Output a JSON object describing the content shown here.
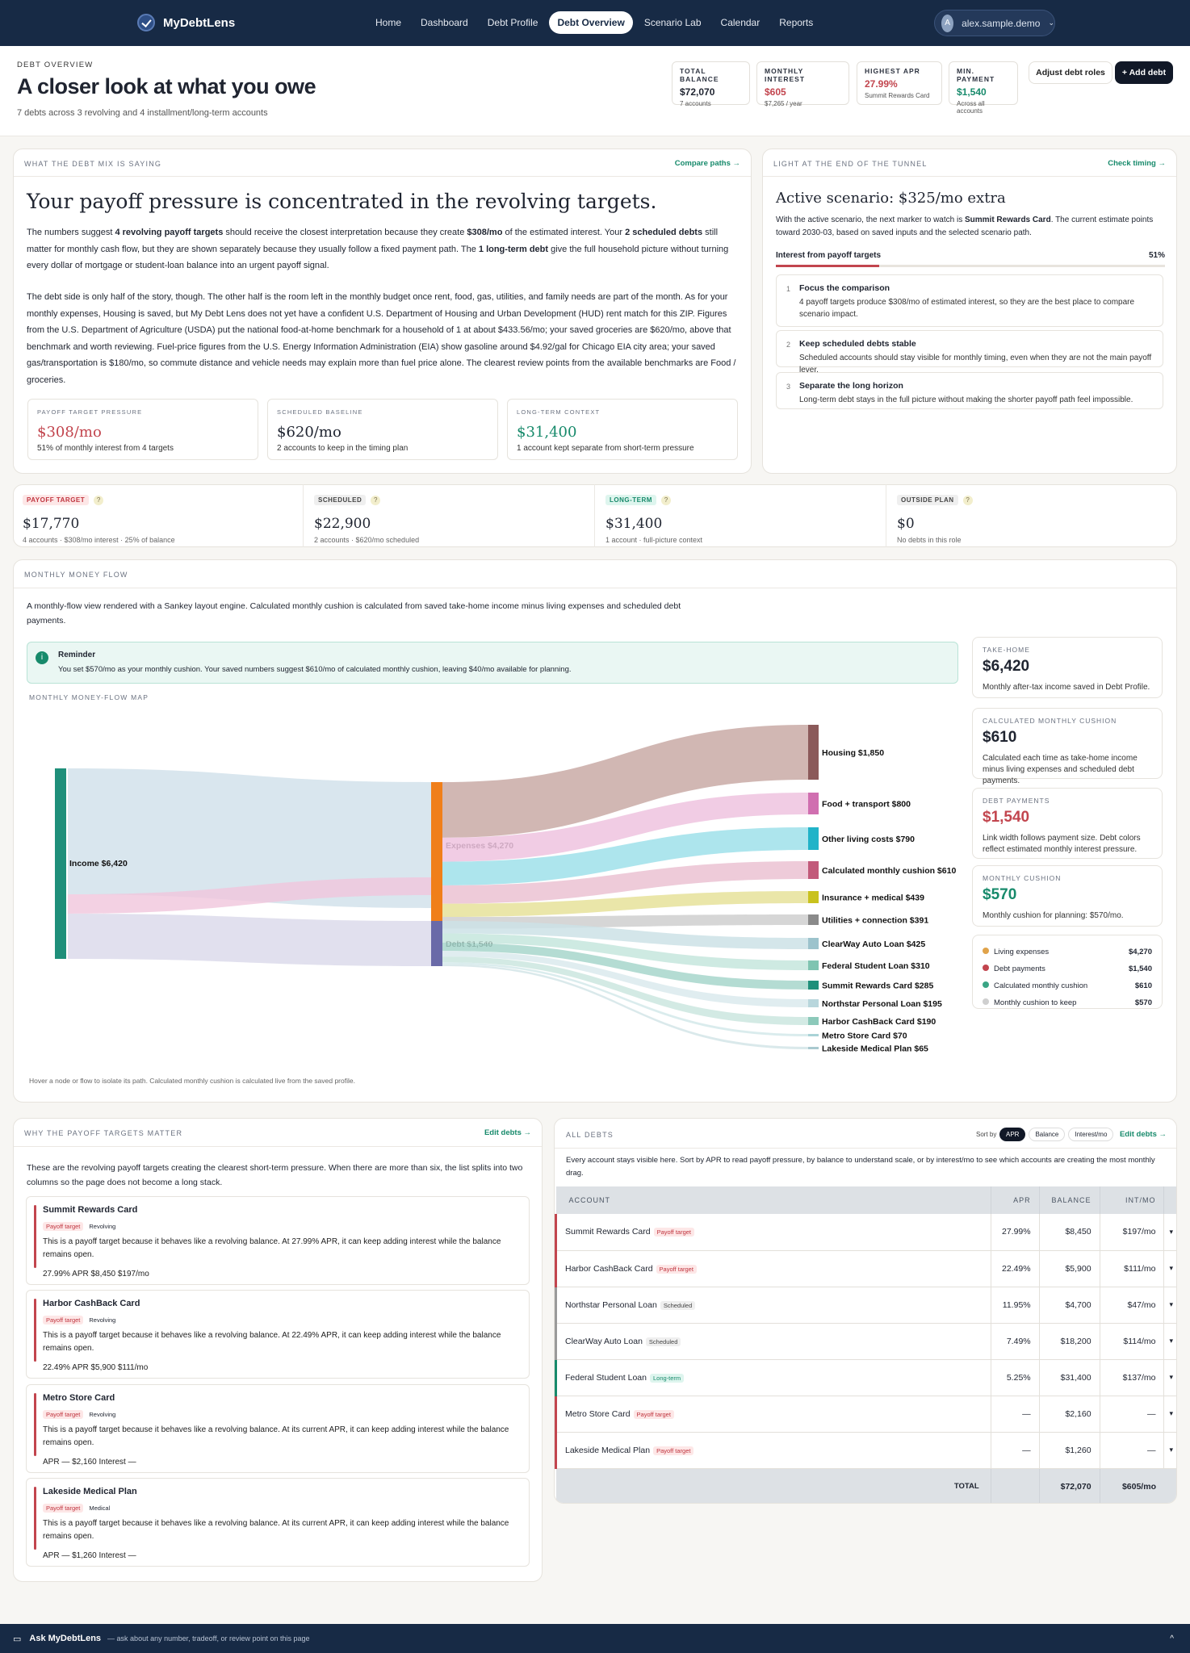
{
  "nav": {
    "brand": "MyDebtLens",
    "links": [
      "Home",
      "Dashboard",
      "Debt Profile",
      "Debt Overview",
      "Scenario Lab",
      "Calendar",
      "Reports"
    ],
    "user": "alex.sample.demo",
    "avatar": "A"
  },
  "header": {
    "eyebrow": "DEBT OVERVIEW",
    "title": "A closer look at what you owe",
    "subtitle": "7 debts across 3 revolving and 4 installment/long-term accounts",
    "stats": [
      {
        "label": "TOTAL BALANCE",
        "value": "$72,070",
        "sub": "7 accounts",
        "color": "#1f2430"
      },
      {
        "label": "MONTHLY INTEREST",
        "value": "$605",
        "sub": "$7,265 / year",
        "color": "#c2454e"
      },
      {
        "label": "HIGHEST APR",
        "value": "27.99%",
        "sub": "Summit Rewards Card",
        "color": "#c2454e"
      },
      {
        "label": "MIN. PAYMENT",
        "value": "$1,540",
        "sub": "Across all accounts",
        "color": "#178a6b"
      }
    ],
    "adjust": "Adjust debt roles",
    "add": "+ Add debt"
  },
  "mix": {
    "label": "WHAT THE DEBT MIX IS SAYING",
    "link": "Compare paths →",
    "headline": "Your payoff pressure is concentrated in the revolving targets.",
    "p1a": "The numbers suggest ",
    "p1b": "4 revolving payoff targets",
    "p1c": " should receive the closest interpretation because they create ",
    "p1d": "$308/mo",
    "p1e": " of the estimated interest. Your ",
    "p1f": "2 scheduled debts",
    "p1g": " still matter for monthly cash flow, but they are shown separately because they usually follow a fixed payment path. The ",
    "p1h": "1 long-term debt",
    "p1i": " give the full household picture without turning every dollar of mortgage or student-loan balance into an urgent payoff signal.",
    "p2": "The debt side is only half of the story, though. The other half is the room left in the monthly budget once rent, food, gas, utilities, and family needs are part of the month. As for your monthly expenses, Housing is saved, but My Debt Lens does not yet have a confident U.S. Department of Housing and Urban Development (HUD) rent match for this ZIP. Figures from the U.S. Department of Agriculture (USDA) put the national food-at-home benchmark for a household of 1 at about $433.56/mo; your saved groceries are $620/mo, above that benchmark and worth reviewing. Fuel-price figures from the U.S. Energy Information Administration (EIA) show gasoline around $4.92/gal for Chicago EIA city area; your saved gas/transportation is $180/mo, so commute distance and vehicle needs may explain more than fuel price alone. The clearest review points from the available benchmarks are Food / groceries.",
    "minis": [
      {
        "label": "PAYOFF TARGET PRESSURE",
        "value": "$308/mo",
        "sub": "51% of monthly interest from 4 targets",
        "color": "#c2454e"
      },
      {
        "label": "SCHEDULED BASELINE",
        "value": "$620/mo",
        "sub": "2 accounts to keep in the timing plan",
        "color": "#1f2430"
      },
      {
        "label": "LONG-TERM CONTEXT",
        "value": "$31,400",
        "sub": "1 account kept separate from short-term pressure",
        "color": "#178a6b"
      }
    ]
  },
  "tunnel": {
    "label": "LIGHT AT THE END OF THE TUNNEL",
    "link": "Check timing →",
    "title": "Active scenario: $325/mo extra",
    "desc_a": "With the active scenario, the next marker to watch is ",
    "desc_b": "Summit Rewards Card",
    "desc_c": ". The current estimate points toward 2030-03, based on saved inputs and the selected scenario path.",
    "bar_label": "Interest from payoff targets",
    "bar_value": "51%",
    "bar_fraction": 0.51,
    "steps": [
      {
        "n": "1",
        "t": "Focus the comparison",
        "d": "4 payoff targets produce $308/mo of estimated interest, so they are the best place to compare scenario impact."
      },
      {
        "n": "2",
        "t": "Keep scheduled debts stable",
        "d": "Scheduled accounts should stay visible for monthly timing, even when they are not the main payoff lever."
      },
      {
        "n": "3",
        "t": "Separate the long horizon",
        "d": "Long-term debt stays in the full picture without making the shorter payoff path feel impossible."
      }
    ]
  },
  "roles": [
    {
      "tag": "PAYOFF TARGET",
      "value": "$17,770",
      "sub": "4 accounts · $308/mo interest · 25% of balance",
      "tagbg": "#fde7e7",
      "tagc": "#c0353f"
    },
    {
      "tag": "SCHEDULED",
      "value": "$22,900",
      "sub": "2 accounts · $620/mo scheduled",
      "tagbg": "#efefef",
      "tagc": "#444"
    },
    {
      "tag": "LONG-TERM",
      "value": "$31,400",
      "sub": "1 account · full-picture context",
      "tagbg": "#def5ee",
      "tagc": "#178a6b"
    },
    {
      "tag": "OUTSIDE PLAN",
      "value": "$0",
      "sub": "No debts in this role",
      "tagbg": "#efefef",
      "tagc": "#444"
    }
  ],
  "flow": {
    "label": "MONTHLY MONEY FLOW",
    "intro": "A monthly-flow view rendered with a Sankey layout engine. Calculated monthly cushion is calculated from saved take-home income minus living expenses and scheduled debt payments.",
    "reminder_title": "Reminder",
    "reminder": "You set $570/mo as your monthly cushion. Your saved numbers suggest $610/mo of calculated monthly cushion, leaving $40/mo available for planning.",
    "map_label": "MONTHLY MONEY-FLOW MAP",
    "hint": "Hover a node or flow to isolate its path. Calculated monthly cushion is calculated live from the saved profile.",
    "income": "Income  $6,420",
    "expenses": "Expenses  $4,270",
    "debt": "Debt  $1,540",
    "targets": [
      {
        "label": "Housing  $1,850",
        "value": 1850,
        "color": "#8b5a5a",
        "flow": "#c9aaa6"
      },
      {
        "label": "Food + transport  $800",
        "value": 800,
        "color": "#d06fb0",
        "flow": "#eec3df"
      },
      {
        "label": "Other living costs  $790",
        "value": 790,
        "color": "#21b3c8",
        "flow": "#9fe0ea"
      },
      {
        "label": "Calculated monthly cushion  $610",
        "value": 610,
        "color": "#c25a7a",
        "flow": "#ebc2d2"
      },
      {
        "label": "Insurance + medical  $439",
        "value": 439,
        "color": "#c9c21e",
        "flow": "#e6e29a"
      },
      {
        "label": "Utilities + connection  $391",
        "value": 391,
        "color": "#8a8a8a",
        "flow": "#cfcfcf"
      },
      {
        "label": "ClearWay Auto Loan  $425",
        "value": 425,
        "color": "#9cc3cc",
        "flow": "#cde2e6"
      },
      {
        "label": "Federal Student Loan  $310",
        "value": 310,
        "color": "#7fc4b1",
        "flow": "#c6e6dd"
      },
      {
        "label": "Summit Rewards Card  $285",
        "value": 285,
        "color": "#1f8f7a",
        "flow": "#a7d6cb"
      },
      {
        "label": "Northstar Personal Loan  $195",
        "value": 195,
        "color": "#b8d6dc",
        "flow": "#dbeaed"
      },
      {
        "label": "Harbor CashBack Card  $190",
        "value": 190,
        "color": "#8cc9ba",
        "flow": "#cbe6df"
      },
      {
        "label": "Metro Store Card  $70",
        "value": 70,
        "color": "#a9d3d6",
        "flow": "#d4e9ea"
      },
      {
        "label": "Lakeside Medical Plan  $65",
        "value": 65,
        "color": "#a9c9cf",
        "flow": "#d4e5e8"
      }
    ],
    "side": [
      {
        "label": "TAKE-HOME",
        "value": "$6,420",
        "desc": "Monthly after-tax income saved in Debt Profile.",
        "color": "#1f2430"
      },
      {
        "label": "CALCULATED MONTHLY CUSHION",
        "value": "$610",
        "desc": "Calculated each time as take-home income minus living expenses and scheduled debt payments.",
        "color": "#1f2430"
      },
      {
        "label": "DEBT PAYMENTS",
        "value": "$1,540",
        "desc": "Link width follows payment size. Debt colors reflect estimated monthly interest pressure.",
        "color": "#c2454e"
      },
      {
        "label": "MONTHLY CUSHION",
        "value": "$570",
        "desc": "Monthly cushion for planning: $570/mo.",
        "color": "#178a6b"
      }
    ],
    "legend": [
      {
        "label": "Living expenses",
        "value": "$4,270",
        "color": "#e0a34a"
      },
      {
        "label": "Debt payments",
        "value": "$1,540",
        "color": "#c2454e"
      },
      {
        "label": "Calculated monthly cushion",
        "value": "$610",
        "color": "#3aa585"
      },
      {
        "label": "Monthly cushion to keep",
        "value": "$570",
        "color": "#cfcfcf"
      }
    ]
  },
  "why": {
    "label": "WHY THE PAYOFF TARGETS MATTER",
    "link": "Edit debts →",
    "intro": "These are the revolving payoff targets creating the clearest short-term pressure. When there are more than six, the list splits into two columns so the page does not become a long stack.",
    "items": [
      {
        "name": "Summit Rewards Card",
        "tag1": "Payoff target",
        "tag2": "Revolving",
        "desc": "This is a payoff target because it behaves like a revolving balance. At 27.99% APR, it can keep adding interest while the balance remains open.",
        "meta": "27.99% APR    $8,450    $197/mo"
      },
      {
        "name": "Harbor CashBack Card",
        "tag1": "Payoff target",
        "tag2": "Revolving",
        "desc": "This is a payoff target because it behaves like a revolving balance. At 22.49% APR, it can keep adding interest while the balance remains open.",
        "meta": "22.49% APR    $5,900    $111/mo"
      },
      {
        "name": "Metro Store Card",
        "tag1": "Payoff target",
        "tag2": "Revolving",
        "desc": "This is a payoff target because it behaves like a revolving balance. At its current APR, it can keep adding interest while the balance remains open.",
        "meta": "APR —    $2,160    Interest —"
      },
      {
        "name": "Lakeside Medical Plan",
        "tag1": "Payoff target",
        "tag2": "Medical",
        "desc": "This is a payoff target because it behaves like a revolving balance. At its current APR, it can keep adding interest while the balance remains open.",
        "meta": "APR —    $1,260    Interest —"
      }
    ]
  },
  "debts": {
    "label": "ALL DEBTS",
    "sortby": "Sort by",
    "sorts": [
      "APR",
      "Balance",
      "Interest/mo"
    ],
    "link": "Edit debts →",
    "intro": "Every account stays visible here. Sort by APR to read payoff pressure, by balance to understand scale, or by interest/mo to see which accounts are creating the most monthly drag.",
    "cols": [
      "ACCOUNT",
      "APR",
      "BALANCE",
      "INT/MO"
    ],
    "rows": [
      {
        "name": "Summit Rewards Card",
        "tag": "Payoff target",
        "apr": "27.99%",
        "bal": "$8,450",
        "int": "$197/mo",
        "c": "#c2454e",
        "tc": "red"
      },
      {
        "name": "Harbor CashBack Card",
        "tag": "Payoff target",
        "apr": "22.49%",
        "bal": "$5,900",
        "int": "$111/mo",
        "c": "#c2454e",
        "tc": "red"
      },
      {
        "name": "Northstar Personal Loan",
        "tag": "Scheduled",
        "apr": "11.95%",
        "bal": "$4,700",
        "int": "$47/mo",
        "c": "#9a9a9a",
        "tc": "gray"
      },
      {
        "name": "ClearWay Auto Loan",
        "tag": "Scheduled",
        "apr": "7.49%",
        "bal": "$18,200",
        "int": "$114/mo",
        "c": "#9a9a9a",
        "tc": "gray"
      },
      {
        "name": "Federal Student Loan",
        "tag": "Long-term",
        "apr": "5.25%",
        "bal": "$31,400",
        "int": "$137/mo",
        "c": "#178a6b",
        "tc": "green"
      },
      {
        "name": "Metro Store Card",
        "tag": "Payoff target",
        "apr": "—",
        "bal": "$2,160",
        "int": "—",
        "c": "#c2454e",
        "tc": "red"
      },
      {
        "name": "Lakeside Medical Plan",
        "tag": "Payoff target",
        "apr": "—",
        "bal": "$1,260",
        "int": "—",
        "c": "#c2454e",
        "tc": "red"
      }
    ],
    "total_label": "TOTAL",
    "total_bal": "$72,070",
    "total_int": "$605/mo",
    "caret": "▾"
  },
  "footer": {
    "title": "Ask MyDebtLens",
    "hint": "— ask about any number, tradeoff, or review point on this page",
    "chevron": "^"
  }
}
